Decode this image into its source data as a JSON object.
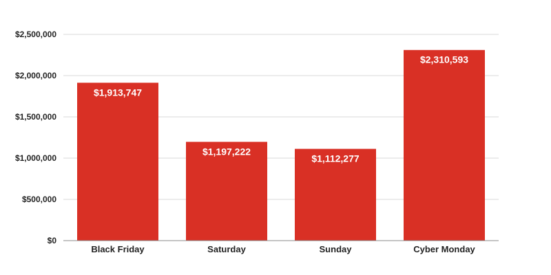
{
  "chart_data": {
    "type": "bar",
    "categories": [
      "Black Friday",
      "Saturday",
      "Sunday",
      "Cyber Monday"
    ],
    "values": [
      1913747,
      1197222,
      1112277,
      2310593
    ],
    "data_labels": [
      "$1,913,747",
      "$1,197,222",
      "$1,112,277",
      "$2,310,593"
    ],
    "ylim": [
      0,
      2500000
    ],
    "yticks": [
      0,
      500000,
      1000000,
      1500000,
      2000000,
      2500000
    ],
    "ytick_labels": [
      "$0",
      "$500,000",
      "$1,000,000",
      "$1,500,000",
      "$2,000,000",
      "$2,500,000"
    ],
    "bar_color": "#d93025",
    "grid": true,
    "legend": "none"
  }
}
